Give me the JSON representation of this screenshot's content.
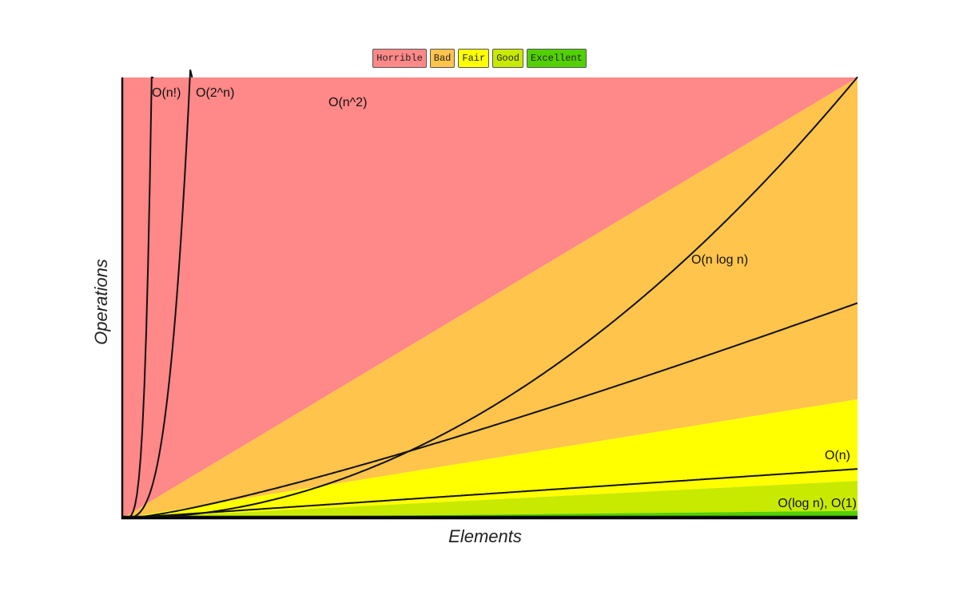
{
  "legend": [
    {
      "label": "Horrible",
      "color": "#ff8888"
    },
    {
      "label": "Bad",
      "color": "#fec44b"
    },
    {
      "label": "Fair",
      "color": "#ffff00"
    },
    {
      "label": "Good",
      "color": "#c8ea00"
    },
    {
      "label": "Excellent",
      "color": "#52d000"
    }
  ],
  "chart_data": {
    "type": "line",
    "xlabel": "Elements",
    "ylabel": "Operations",
    "xlim": [
      0,
      100
    ],
    "ylim": [
      0,
      1000
    ],
    "grid": false,
    "legend_position": "top-center",
    "regions": [
      {
        "name": "Horrible",
        "color": "#ff8888",
        "upper_slope": null
      },
      {
        "name": "Bad",
        "color": "#fec44b",
        "upper_slope": 10
      },
      {
        "name": "Fair",
        "color": "#ffff00",
        "upper_slope": 2.7
      },
      {
        "name": "Good",
        "color": "#c8ea00",
        "upper_slope": 0.85
      },
      {
        "name": "Excellent",
        "color": "#52d000",
        "upper_slope": 0.17
      }
    ],
    "series": [
      {
        "name": "O(n!)",
        "label": "O(n!)",
        "function": "factorial"
      },
      {
        "name": "O(2^n)",
        "label": "O(2^n)",
        "function": "exponential"
      },
      {
        "name": "O(n^2)",
        "label": "O(n^2)",
        "function": "quadratic"
      },
      {
        "name": "O(n log n)",
        "label": "O(n log n)",
        "function": "nlogn"
      },
      {
        "name": "O(n)",
        "label": "O(n)",
        "function": "linear"
      },
      {
        "name": "O(log n)",
        "label": "O(log n), O(1)",
        "function": "log"
      },
      {
        "name": "O(1)",
        "label": "",
        "function": "constant"
      }
    ]
  }
}
